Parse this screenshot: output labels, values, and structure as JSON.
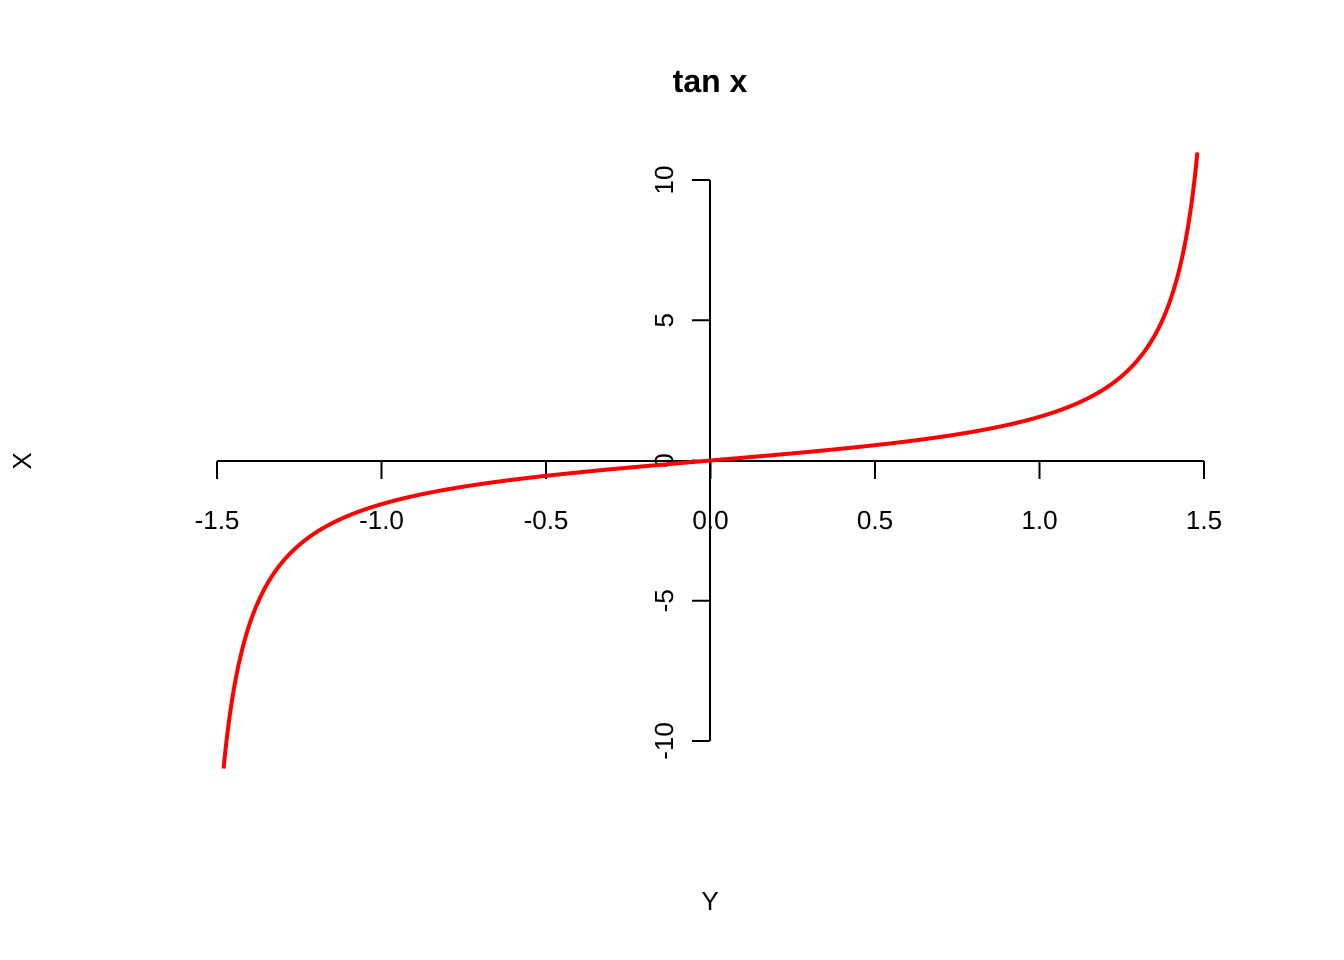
{
  "chart_data": {
    "type": "line",
    "title": "tan x",
    "xlabel": "Y",
    "ylabel": "X",
    "xlim": [
      -1.5,
      1.5
    ],
    "ylim": [
      -10,
      10
    ],
    "x_ticks": [
      "-1.5",
      "-1.0",
      "-0.5",
      "0.0",
      "0.5",
      "1.0",
      "1.5"
    ],
    "y_ticks": [
      "-10",
      "-5",
      "0",
      "5",
      "10"
    ],
    "grid": false,
    "series": [
      {
        "color": "#ff0000",
        "x": [
          -1.48,
          -1.45,
          -1.4,
          -1.35,
          -1.3,
          -1.25,
          -1.2,
          -1.1,
          -1.0,
          -0.9,
          -0.8,
          -0.7,
          -0.6,
          -0.5,
          -0.4,
          -0.3,
          -0.2,
          -0.1,
          0.0,
          0.1,
          0.2,
          0.3,
          0.4,
          0.5,
          0.6,
          0.7,
          0.8,
          0.9,
          1.0,
          1.1,
          1.2,
          1.25,
          1.3,
          1.35,
          1.4,
          1.45,
          1.48
        ],
        "y": [
          -10.98,
          -8.24,
          -5.8,
          -4.46,
          -3.6,
          -3.01,
          -2.57,
          -1.96,
          -1.56,
          -1.26,
          -1.03,
          -0.84,
          -0.68,
          -0.55,
          -0.42,
          -0.31,
          -0.2,
          -0.1,
          0.0,
          0.1,
          0.2,
          0.31,
          0.42,
          0.55,
          0.68,
          0.84,
          1.03,
          1.26,
          1.56,
          1.96,
          2.57,
          3.01,
          3.6,
          4.46,
          5.8,
          8.24,
          10.98
        ]
      }
    ]
  }
}
